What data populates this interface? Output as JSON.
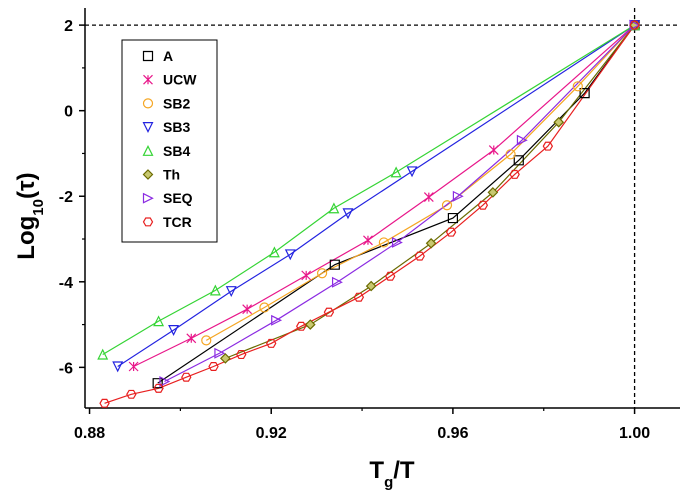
{
  "chart_data": {
    "type": "line",
    "xlabel": [
      {
        "text": "T"
      },
      {
        "text": "g",
        "sub": true
      },
      {
        "text": "/T"
      }
    ],
    "ylabel": [
      {
        "text": "Log"
      },
      {
        "text": "10",
        "sub": true
      },
      {
        "text": "(τ)"
      }
    ],
    "xlim": [
      0.879,
      1.01
    ],
    "ylim": [
      -6.95,
      2.4
    ],
    "xticks": [
      0.88,
      0.92,
      0.96,
      {
        "value": 1,
        "label": "1.00"
      }
    ],
    "yticks": [
      -6,
      -4,
      -2,
      0,
      2
    ],
    "xminorticks": [
      0.9,
      0.94,
      0.98
    ],
    "yminorticks": [
      -5,
      -3,
      -1,
      1
    ],
    "reference_lines": {
      "x": 1,
      "y": 2
    },
    "series": [
      {
        "name": "A",
        "color": "#000000",
        "marker": "square",
        "x": [
          0.895,
          0.934,
          0.96,
          0.9745,
          0.989,
          1.0
        ],
        "values": [
          -6.37,
          -3.6,
          -2.51,
          -1.16,
          0.41,
          2
        ]
      },
      {
        "name": "UCW",
        "color": "#e8178a",
        "marker": "x",
        "x": [
          0.8897,
          0.9024,
          0.9147,
          0.9277,
          0.9413,
          0.9547,
          0.969,
          1.0
        ],
        "values": [
          -5.98,
          -5.32,
          -4.64,
          -3.85,
          -3.03,
          -2.02,
          -0.92,
          2
        ]
      },
      {
        "name": "SB2",
        "color": "#f5a623",
        "marker": "circle",
        "x": [
          0.9057,
          0.9185,
          0.9312,
          0.9448,
          0.9587,
          0.9727,
          0.9875,
          1.0
        ],
        "values": [
          -5.37,
          -4.6,
          -3.8,
          -3.08,
          -2.21,
          -1.02,
          0.57,
          2
        ]
      },
      {
        "name": "SB3",
        "color": "#2323e0",
        "marker": "triangle-down",
        "x": [
          0.8862,
          0.8985,
          0.9112,
          0.9242,
          0.9369,
          0.951,
          1.0
        ],
        "values": [
          -5.98,
          -5.13,
          -4.22,
          -3.36,
          -2.4,
          -1.42,
          2
        ]
      },
      {
        "name": "SB4",
        "color": "#35d435",
        "marker": "triangle-up",
        "x": [
          0.8829,
          0.8952,
          0.9077,
          0.9207,
          0.9338,
          0.9475,
          1.0
        ],
        "values": [
          -5.7,
          -4.92,
          -4.2,
          -3.31,
          -2.28,
          -1.44,
          2
        ]
      },
      {
        "name": "Th",
        "color": "#6b6b00",
        "marker": "diamond",
        "x": [
          0.9099,
          0.9286,
          0.942,
          0.9552,
          0.9688,
          0.9833,
          1.0
        ],
        "values": [
          -5.79,
          -5.0,
          -4.1,
          -3.1,
          -1.91,
          -0.27,
          2
        ]
      },
      {
        "name": "SEQ",
        "color": "#8b2be2",
        "marker": "triangle-right",
        "x": [
          0.8965,
          0.9086,
          0.9211,
          0.9345,
          0.9477,
          0.9611,
          0.9752,
          1.0
        ],
        "values": [
          -6.33,
          -5.67,
          -4.9,
          -4.01,
          -3.08,
          -2.0,
          -0.69,
          2
        ]
      },
      {
        "name": "TCR",
        "color": "#e82020",
        "marker": "hexagon",
        "x": [
          0.8833,
          0.8892,
          0.8952,
          0.9013,
          0.9073,
          0.9134,
          0.92,
          0.9266,
          0.9327,
          0.9393,
          0.9462,
          0.9527,
          0.9596,
          0.9666,
          0.9736,
          0.9809,
          1.0
        ],
        "values": [
          -6.84,
          -6.63,
          -6.49,
          -6.23,
          -5.98,
          -5.7,
          -5.44,
          -5.04,
          -4.71,
          -4.36,
          -3.87,
          -3.4,
          -2.84,
          -2.21,
          -1.49,
          -0.83,
          2
        ]
      }
    ]
  }
}
